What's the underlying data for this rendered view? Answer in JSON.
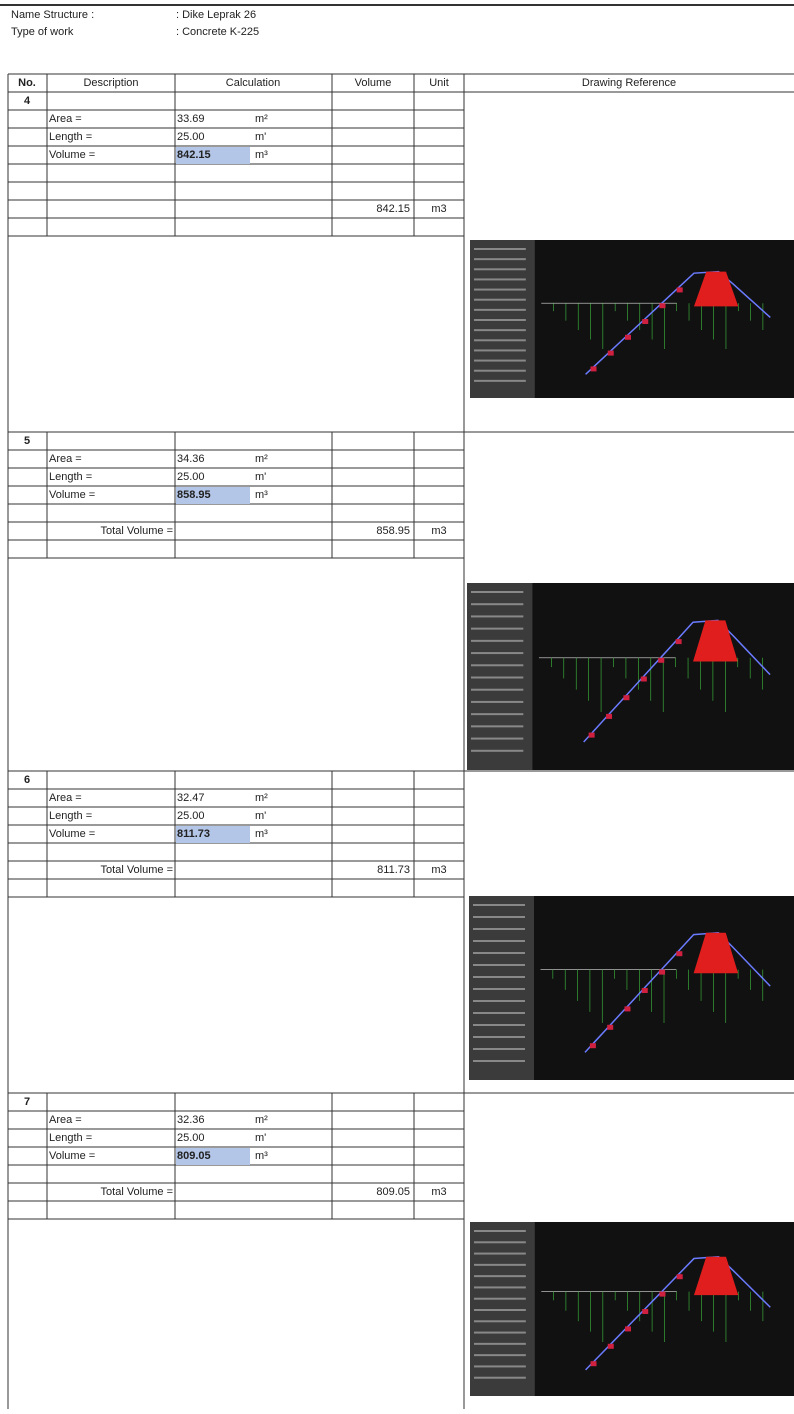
{
  "header": {
    "name_label": "Name Structure :",
    "name_value": ": Dike Leprak 26",
    "work_label": "Type of work",
    "work_value": ": Concrete K-225"
  },
  "columns": [
    "No.",
    "Description",
    "Calculation",
    "Volume",
    "Unit",
    "Drawing Reference"
  ],
  "sections": [
    {
      "no": "4",
      "area_label": "Area =",
      "area": "33.69",
      "area_unit": "m²",
      "length_label": "Length =",
      "length": "25.00",
      "length_unit": "m'",
      "volume_label": "Volume =",
      "volume": "842.15",
      "volume_unit": "m³",
      "total_volume": "842.15",
      "total_unit": "m3"
    },
    {
      "no": "5",
      "area_label": "Area =",
      "area": "34.36",
      "area_unit": "m²",
      "length_label": "Length =",
      "length": "25.00",
      "length_unit": "m'",
      "volume_label": "Volume =",
      "volume": "858.95",
      "volume_unit": "m³",
      "total_label": "Total Volume =",
      "total_volume": "858.95",
      "total_unit": "m3"
    },
    {
      "no": "6",
      "area_label": "Area =",
      "area": "32.47",
      "area_unit": "m²",
      "length_label": "Length =",
      "length": "25.00",
      "length_unit": "m'",
      "volume_label": "Volume =",
      "volume": "811.73",
      "volume_unit": "m³",
      "total_label": "Total Volume =",
      "total_volume": "811.73",
      "total_unit": "m3"
    },
    {
      "no": "7",
      "area_label": "Area =",
      "area": "32.36",
      "area_unit": "m²",
      "length_label": "Length =",
      "length": "25.00",
      "length_unit": "m'",
      "volume_label": "Volume =",
      "volume": "809.05",
      "volume_unit": "m³",
      "total_label": "Total Volume =",
      "total_volume": "809.05",
      "total_unit": "m3"
    }
  ]
}
